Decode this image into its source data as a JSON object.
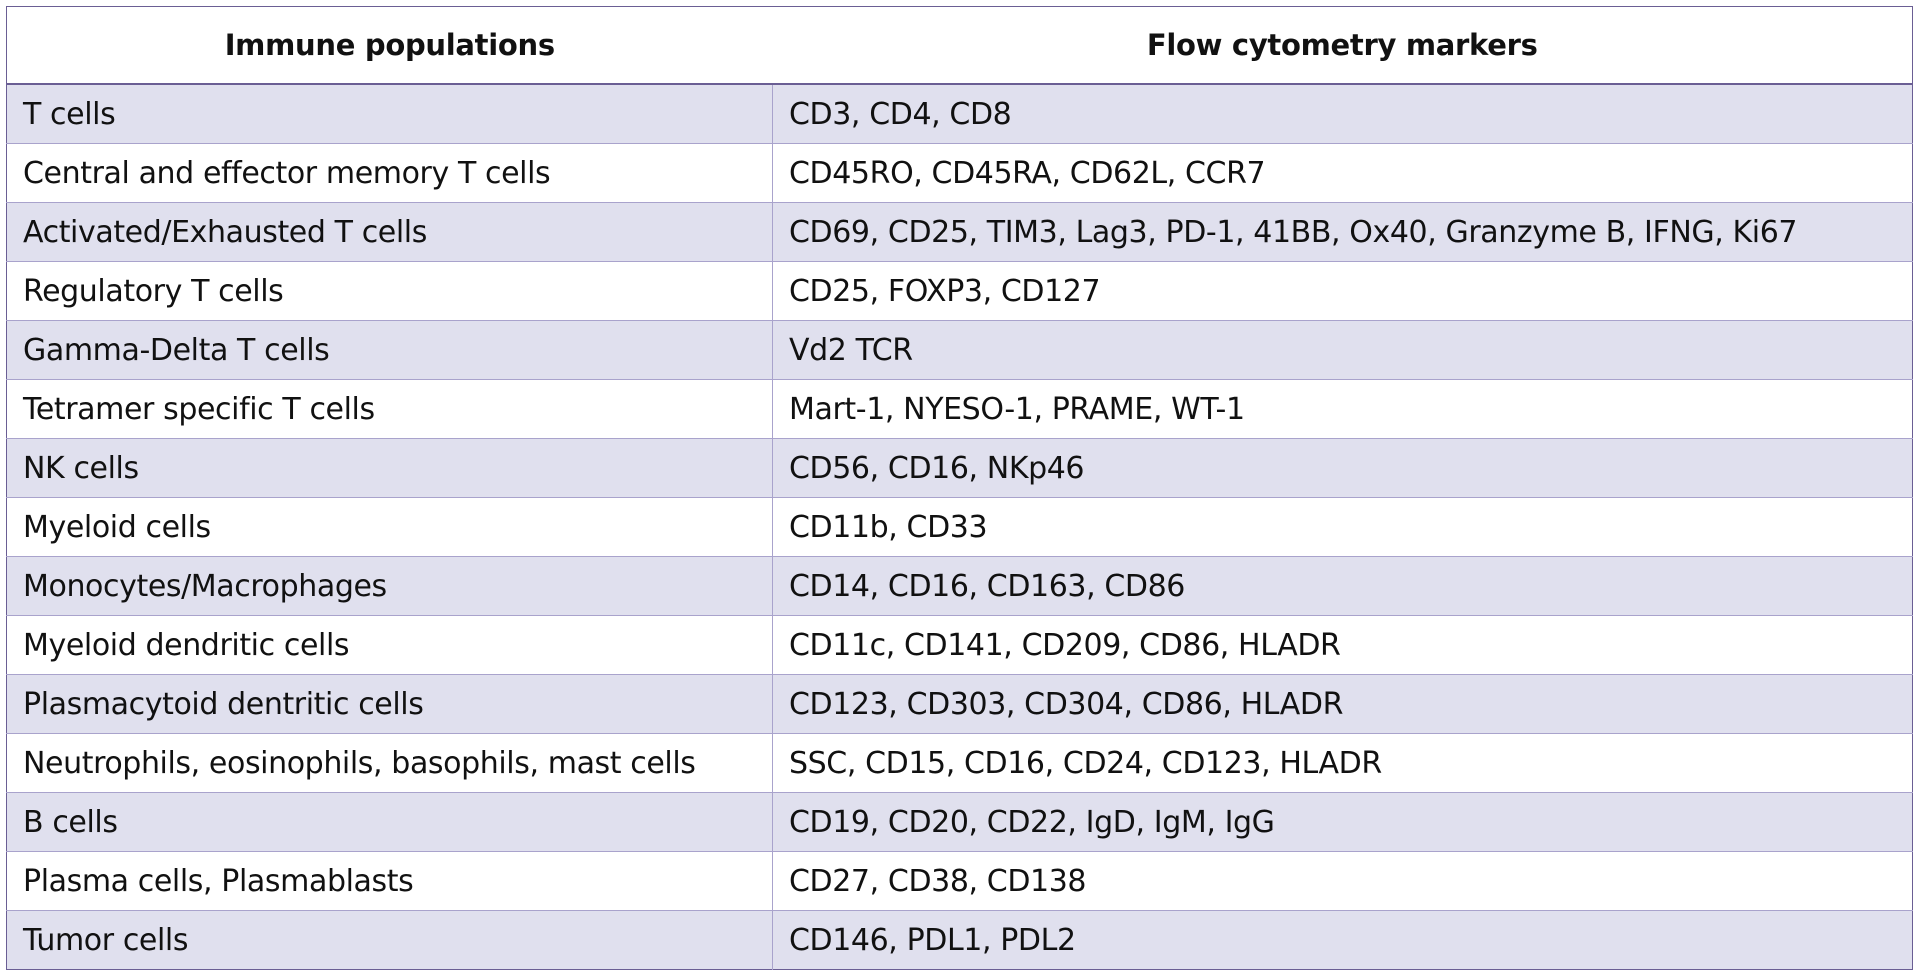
{
  "table": {
    "headers": {
      "population": "Immune populations",
      "markers": "Flow cytometry markers"
    },
    "rows": [
      {
        "population": "T cells",
        "markers": "CD3, CD4, CD8"
      },
      {
        "population": "Central and effector memory T cells",
        "markers": "CD45RO, CD45RA, CD62L, CCR7"
      },
      {
        "population": "Activated/Exhausted T cells",
        "markers": "CD69, CD25, TIM3, Lag3, PD-1, 41BB, Ox40, Granzyme B, IFNG, Ki67"
      },
      {
        "population": "Regulatory T cells",
        "markers": "CD25, FOXP3, CD127"
      },
      {
        "population": "Gamma-Delta T cells",
        "markers": "Vd2 TCR"
      },
      {
        "population": "Tetramer specific T cells",
        "markers": "Mart-1, NYESO-1, PRAME, WT-1"
      },
      {
        "population": "NK cells",
        "markers": "CD56, CD16, NKp46"
      },
      {
        "population": "Myeloid cells",
        "markers": "CD11b, CD33"
      },
      {
        "population": "Monocytes/Macrophages",
        "markers": "CD14, CD16, CD163, CD86"
      },
      {
        "population": "Myeloid dendritic cells",
        "markers": "CD11c, CD141, CD209, CD86, HLADR"
      },
      {
        "population": "Plasmacytoid dentritic cells",
        "markers": "CD123, CD303, CD304, CD86, HLADR"
      },
      {
        "population": "Neutrophils, eosinophils, basophils, mast cells",
        "markers": "SSC, CD15, CD16, CD24, CD123, HLADR"
      },
      {
        "population": "B cells",
        "markers": "CD19, CD20, CD22, IgD, IgM, IgG"
      },
      {
        "population": "Plasma cells, Plasmablasts",
        "markers": "CD27, CD38, CD138"
      },
      {
        "population": "Tumor cells",
        "markers": "CD146, PDL1, PDL2"
      }
    ]
  },
  "colors": {
    "border": "#6a5e94",
    "row_band": "#e0e0ee",
    "row_plain": "#ffffff"
  }
}
